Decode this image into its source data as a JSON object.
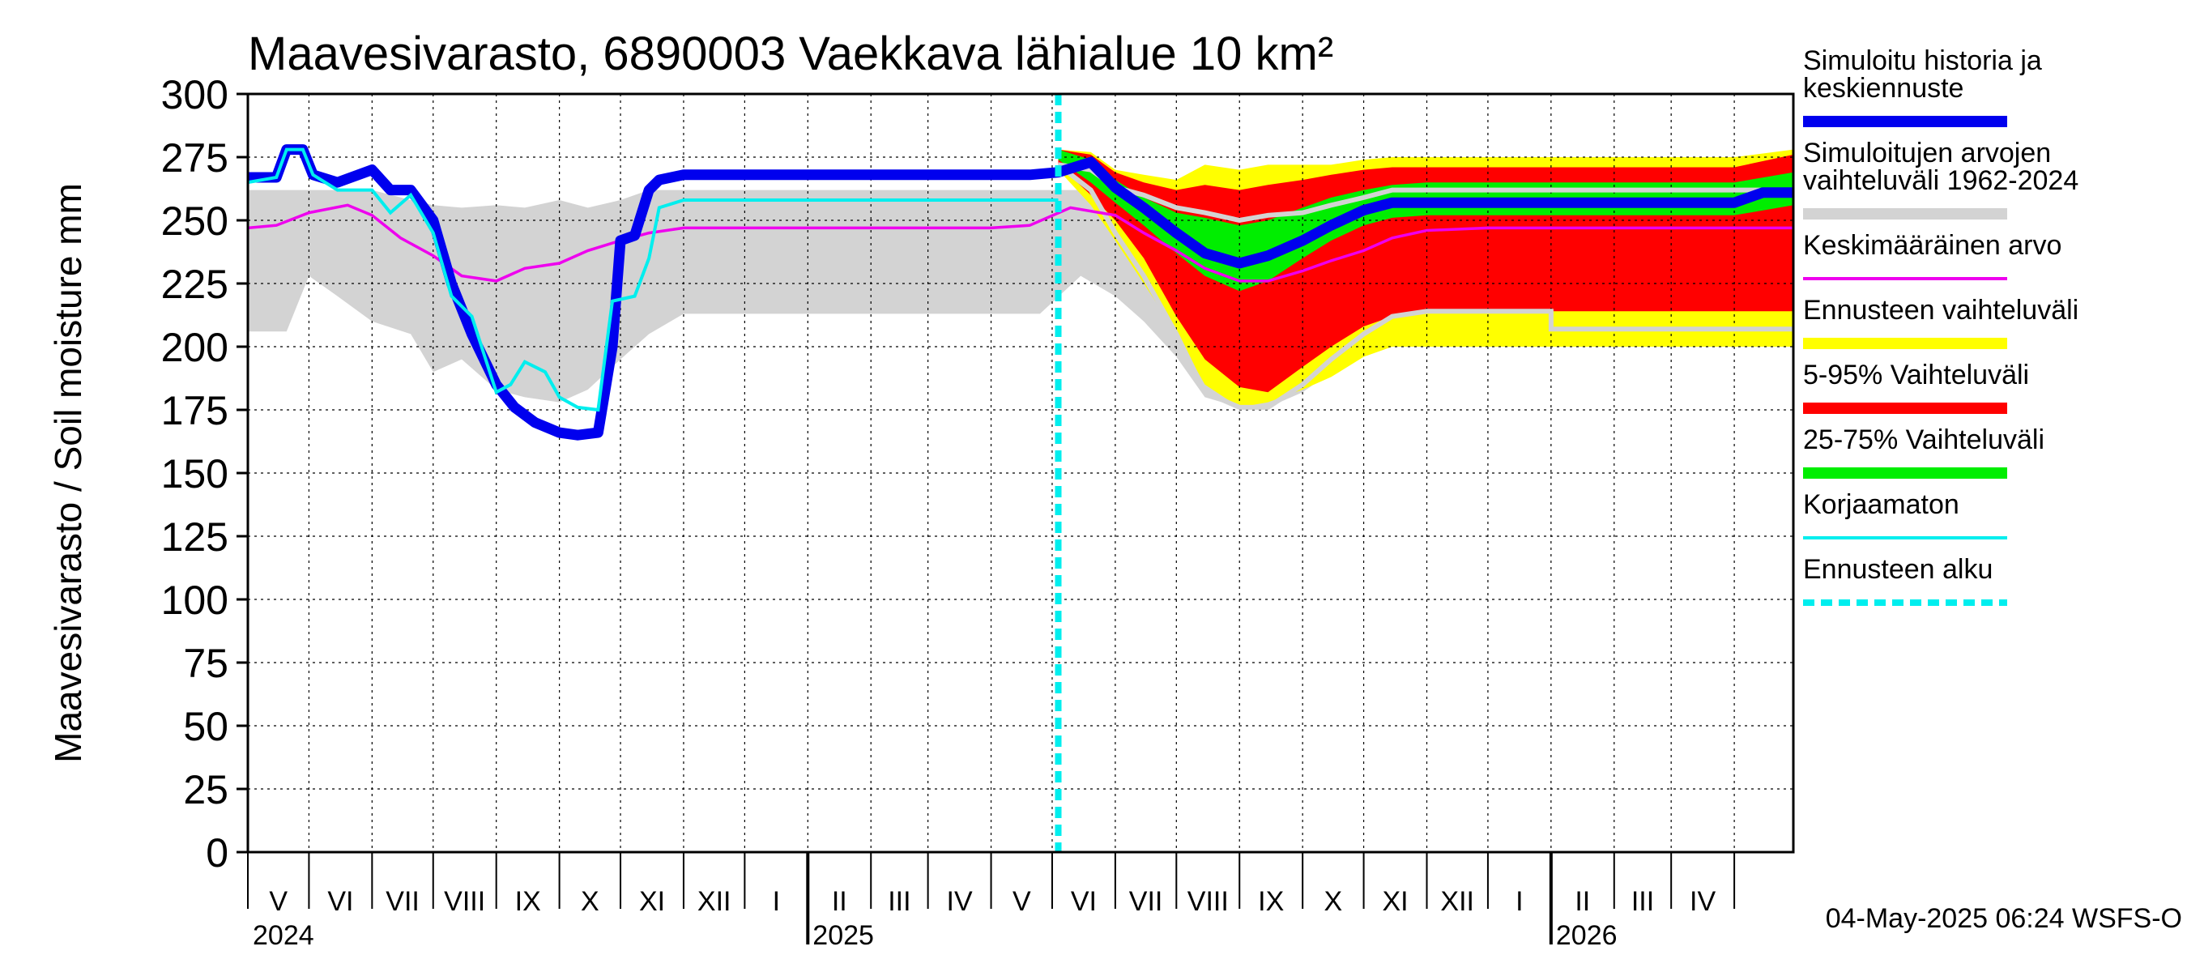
{
  "chart_data": {
    "type": "area",
    "title": "Maavesivarasto, 6890003 Vaekkava lähialue 10 km²",
    "ylabel": "Maavesivarasto / Soil moisture   mm",
    "ylim": [
      0,
      300
    ],
    "yticks": [
      "0",
      "25",
      "50",
      "75",
      "100",
      "125",
      "150",
      "175",
      "200",
      "225",
      "250",
      "275",
      "300"
    ],
    "xlim": [
      "2024-04-01",
      "2026-04-30"
    ],
    "months": [
      "V",
      "VI",
      "VII",
      "VIII",
      "IX",
      "X",
      "XI",
      "XII",
      "I",
      "II",
      "III",
      "IV",
      "V",
      "VI",
      "VII",
      "VIII",
      "IX",
      "X",
      "XI",
      "XII",
      "I",
      "II",
      "III",
      "IV"
    ],
    "years": [
      "2024",
      "2025",
      "2026"
    ],
    "forecast_start": "2025-05-04",
    "grid": true,
    "legend_position": "right",
    "timestamp": "04-May-2025 06:24 WSFS-O",
    "colors": {
      "simulated": "#0000ee",
      "hist_range": "#d3d3d3",
      "mean": "#ee00ee",
      "forecast_range": "#ffff00",
      "p5_95": "#ff0000",
      "p25_75": "#00ee00",
      "uncorrected": "#00eeee",
      "forecast_start": "#00eeee"
    },
    "legend": [
      {
        "key": "simulated",
        "label": [
          "Simuloitu historia ja",
          "keskiennuste"
        ],
        "style": "thick"
      },
      {
        "key": "hist_range",
        "label": [
          "Simuloitujen arvojen",
          "vaihteluväli 1962-2024"
        ],
        "style": "thick"
      },
      {
        "key": "mean",
        "label": [
          "Keskimääräinen arvo"
        ],
        "style": "thin"
      },
      {
        "key": "forecast_range",
        "label": [
          "Ennusteen vaihteluväli"
        ],
        "style": "thick"
      },
      {
        "key": "p5_95",
        "label": [
          "5-95% Vaihteluväli"
        ],
        "style": "thick"
      },
      {
        "key": "p25_75",
        "label": [
          "25-75% Vaihteluväli"
        ],
        "style": "thick"
      },
      {
        "key": "uncorrected",
        "label": [
          "Korjaamaton"
        ],
        "style": "thin"
      },
      {
        "key": "forecast_start",
        "label": [
          "Ennusteen alku"
        ],
        "style": "dashed"
      }
    ],
    "series": {
      "hist_range": {
        "x": [
          "2024-04-01",
          "2024-04-20",
          "2024-05-01",
          "2024-05-15",
          "2024-06-01",
          "2024-06-20",
          "2024-07-01",
          "2024-07-15",
          "2024-08-01",
          "2024-08-15",
          "2024-09-01",
          "2024-09-15",
          "2024-10-01",
          "2024-10-15",
          "2024-11-01",
          "2024-12-01",
          "2025-01-01",
          "2025-02-01",
          "2025-03-01",
          "2025-04-01",
          "2025-04-25",
          "2025-05-15",
          "2025-06-01",
          "2025-06-15",
          "2025-07-01",
          "2025-07-15",
          "2025-08-01",
          "2025-08-15",
          "2025-09-01",
          "2025-09-15",
          "2025-10-01",
          "2025-10-15",
          "2025-11-01",
          "2025-12-01",
          "2026-01-01",
          "2026-02-01",
          "2026-03-01",
          "2026-04-01",
          "2026-04-30"
        ],
        "lower": [
          206,
          206,
          228,
          220,
          210,
          205,
          190,
          195,
          183,
          180,
          178,
          183,
          195,
          205,
          213,
          213,
          213,
          213,
          213,
          213,
          213,
          228,
          220,
          210,
          196,
          180,
          176,
          176,
          182,
          190,
          198,
          206,
          213,
          213,
          213,
          213,
          213,
          213,
          213
        ],
        "upper": [
          262,
          262,
          262,
          262,
          262,
          258,
          256,
          255,
          256,
          255,
          258,
          255,
          258,
          262,
          262,
          262,
          262,
          262,
          262,
          262,
          262,
          262,
          262,
          261,
          260,
          258,
          258,
          258,
          258,
          258,
          258,
          260,
          262,
          262,
          262,
          262,
          262,
          262,
          262
        ]
      },
      "forecast_range": {
        "x": [
          "2025-05-04",
          "2025-05-20",
          "2025-06-01",
          "2025-06-15",
          "2025-07-01",
          "2025-07-15",
          "2025-08-01",
          "2025-08-15",
          "2025-09-01",
          "2025-09-15",
          "2025-10-01",
          "2025-10-15",
          "2025-11-01",
          "2025-12-01",
          "2026-01-01",
          "2026-02-01",
          "2026-03-01",
          "2026-04-01",
          "2026-04-30"
        ],
        "lower": [
          270,
          256,
          242,
          225,
          205,
          185,
          176,
          178,
          183,
          188,
          196,
          200,
          200,
          200,
          200,
          200,
          200,
          200,
          200
        ],
        "upper": [
          278,
          277,
          270,
          268,
          266,
          272,
          270,
          272,
          272,
          272,
          274,
          275,
          275,
          275,
          275,
          275,
          275,
          275,
          278
        ]
      },
      "p5_95": {
        "x": [
          "2025-05-04",
          "2025-05-20",
          "2025-06-01",
          "2025-06-15",
          "2025-07-01",
          "2025-07-15",
          "2025-08-01",
          "2025-08-15",
          "2025-09-01",
          "2025-09-15",
          "2025-10-01",
          "2025-10-15",
          "2025-11-01",
          "2025-12-01",
          "2026-01-01",
          "2026-02-01",
          "2026-03-01",
          "2026-04-01",
          "2026-04-30"
        ],
        "lower": [
          272,
          260,
          250,
          235,
          212,
          195,
          184,
          182,
          192,
          200,
          208,
          212,
          214,
          214,
          214,
          214,
          214,
          214,
          214
        ],
        "upper": [
          278,
          276,
          269,
          265,
          262,
          264,
          262,
          264,
          266,
          268,
          270,
          271,
          271,
          271,
          271,
          271,
          271,
          271,
          276
        ]
      },
      "p25_75": {
        "x": [
          "2025-05-04",
          "2025-05-20",
          "2025-06-01",
          "2025-06-15",
          "2025-07-01",
          "2025-07-15",
          "2025-08-01",
          "2025-08-15",
          "2025-09-01",
          "2025-09-15",
          "2025-10-01",
          "2025-10-15",
          "2025-11-01",
          "2025-12-01",
          "2026-01-01",
          "2026-02-01",
          "2026-03-01",
          "2026-04-01",
          "2026-04-30"
        ],
        "lower": [
          274,
          265,
          257,
          248,
          237,
          228,
          222,
          226,
          235,
          242,
          248,
          251,
          252,
          252,
          252,
          252,
          252,
          252,
          256
        ],
        "upper": [
          278,
          274,
          266,
          259,
          253,
          251,
          248,
          250,
          255,
          259,
          262,
          264,
          265,
          265,
          265,
          265,
          265,
          265,
          269
        ]
      },
      "mean": {
        "x": [
          "2024-04-01",
          "2024-04-15",
          "2024-05-01",
          "2024-05-20",
          "2024-06-01",
          "2024-06-15",
          "2024-07-01",
          "2024-07-15",
          "2024-08-01",
          "2024-08-15",
          "2024-09-01",
          "2024-09-15",
          "2024-10-01",
          "2024-10-15",
          "2024-11-01",
          "2024-12-01",
          "2025-01-01",
          "2025-02-01",
          "2025-03-01",
          "2025-04-01",
          "2025-04-20",
          "2025-05-10",
          "2025-06-01",
          "2025-06-15",
          "2025-07-01",
          "2025-07-15",
          "2025-08-01",
          "2025-08-15",
          "2025-09-01",
          "2025-09-15",
          "2025-10-01",
          "2025-10-15",
          "2025-11-01",
          "2025-12-01",
          "2026-01-01",
          "2026-02-01",
          "2026-03-01",
          "2026-04-01",
          "2026-04-30"
        ],
        "y": [
          247,
          248,
          253,
          256,
          252,
          243,
          236,
          228,
          226,
          231,
          233,
          238,
          242,
          245,
          247,
          247,
          247,
          247,
          247,
          247,
          248,
          255,
          252,
          245,
          238,
          231,
          226,
          226,
          230,
          234,
          238,
          243,
          246,
          247,
          247,
          247,
          247,
          247,
          247
        ]
      },
      "simulated": {
        "x": [
          "2024-04-01",
          "2024-04-15",
          "2024-04-20",
          "2024-04-28",
          "2024-05-03",
          "2024-05-15",
          "2024-06-01",
          "2024-06-10",
          "2024-06-20",
          "2024-07-01",
          "2024-07-10",
          "2024-07-20",
          "2024-08-01",
          "2024-08-10",
          "2024-08-20",
          "2024-09-01",
          "2024-09-10",
          "2024-09-20",
          "2024-09-27",
          "2024-10-01",
          "2024-10-08",
          "2024-10-15",
          "2024-10-20",
          "2024-11-01",
          "2024-12-01",
          "2025-01-01",
          "2025-02-01",
          "2025-03-01",
          "2025-04-01",
          "2025-04-20",
          "2025-05-04",
          "2025-05-20",
          "2025-06-01",
          "2025-06-15",
          "2025-07-01",
          "2025-07-15",
          "2025-08-01",
          "2025-08-15",
          "2025-09-01",
          "2025-09-15",
          "2025-10-01",
          "2025-10-15",
          "2025-11-01",
          "2025-12-01",
          "2026-01-01",
          "2026-02-01",
          "2026-03-01",
          "2026-04-01",
          "2026-04-15",
          "2026-04-30"
        ],
        "y": [
          267,
          267,
          278,
          278,
          268,
          265,
          270,
          262,
          262,
          250,
          225,
          205,
          185,
          176,
          170,
          166,
          165,
          166,
          200,
          242,
          244,
          262,
          266,
          268,
          268,
          268,
          268,
          268,
          268,
          268,
          269,
          273,
          263,
          255,
          245,
          237,
          233,
          236,
          242,
          248,
          254,
          257,
          257,
          257,
          257,
          257,
          257,
          257,
          261,
          261
        ]
      },
      "uncorrected": {
        "x": [
          "2024-04-01",
          "2024-04-15",
          "2024-04-20",
          "2024-04-28",
          "2024-05-03",
          "2024-05-15",
          "2024-06-01",
          "2024-06-10",
          "2024-06-20",
          "2024-07-01",
          "2024-07-10",
          "2024-07-20",
          "2024-08-01",
          "2024-08-08",
          "2024-08-15",
          "2024-08-25",
          "2024-09-01",
          "2024-09-10",
          "2024-09-20",
          "2024-09-27",
          "2024-10-08",
          "2024-10-15",
          "2024-10-20",
          "2024-11-01",
          "2024-12-01",
          "2025-01-01",
          "2025-02-01",
          "2025-03-01",
          "2025-04-01",
          "2025-04-20",
          "2025-05-04"
        ],
        "y": [
          265,
          267,
          278,
          278,
          268,
          262,
          262,
          253,
          260,
          245,
          220,
          212,
          182,
          185,
          194,
          190,
          180,
          176,
          175,
          218,
          220,
          235,
          255,
          258,
          258,
          258,
          258,
          258,
          258,
          258,
          258
        ]
      },
      "hist_white": {
        "x": [
          "2025-05-04",
          "2025-05-20",
          "2025-06-01",
          "2025-06-15",
          "2025-07-01",
          "2025-07-15",
          "2025-08-01",
          "2025-08-15",
          "2025-09-01",
          "2025-09-15",
          "2025-10-01",
          "2025-10-15",
          "2025-11-01",
          "2026-01-01",
          "2026-01-01",
          "2026-04-30"
        ],
        "upper": [
          272,
          270,
          263,
          260,
          255,
          253,
          250,
          252,
          253,
          256,
          259,
          262,
          262,
          262,
          262,
          262
        ],
        "lower": [
          272,
          262,
          245,
          228,
          205,
          182,
          176,
          176,
          185,
          195,
          205,
          212,
          214,
          214,
          207,
          207
        ]
      }
    }
  }
}
